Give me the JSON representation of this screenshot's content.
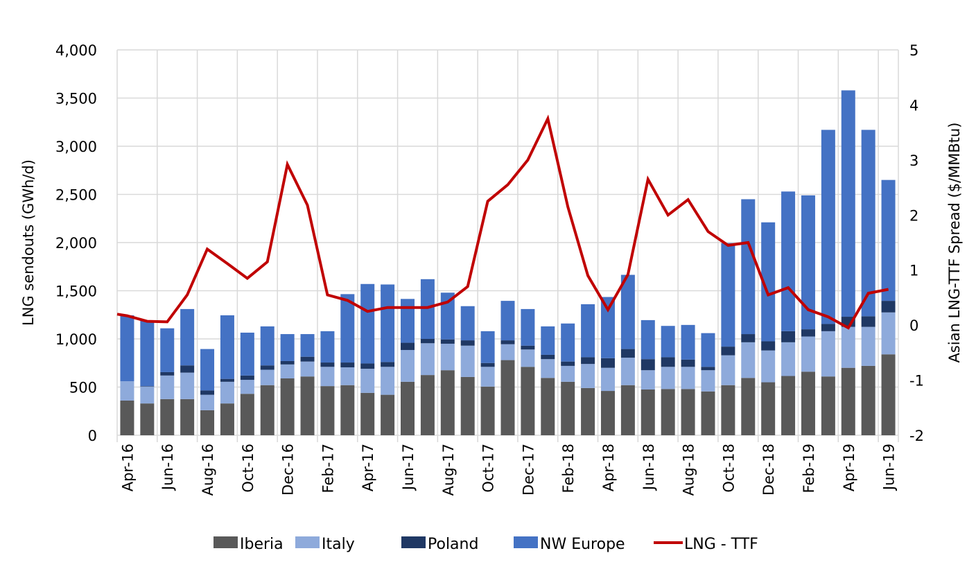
{
  "chart_data": {
    "type": "bar",
    "stacked": true,
    "title": "",
    "xlabel": "",
    "ylabel": "LNG sendouts (GWh/d)",
    "y2label": "Asian LNG-TTF Spread ($/MMBtu)",
    "ylim": [
      0,
      4000
    ],
    "y2lim": [
      -2,
      5
    ],
    "yticks": [
      "0",
      "500",
      "1,000",
      "1,500",
      "2,000",
      "2,500",
      "3,000",
      "3,500",
      "4,000"
    ],
    "y2ticks": [
      "-2",
      "-1",
      "0",
      "1",
      "2",
      "3",
      "4",
      "5"
    ],
    "grid": true,
    "legend_position": "bottom",
    "categories": [
      "Apr-16",
      "May-16",
      "Jun-16",
      "Jul-16",
      "Aug-16",
      "Sep-16",
      "Oct-16",
      "Nov-16",
      "Dec-16",
      "Jan-17",
      "Feb-17",
      "Mar-17",
      "Apr-17",
      "May-17",
      "Jun-17",
      "Jul-17",
      "Aug-17",
      "Sep-17",
      "Oct-17",
      "Nov-17",
      "Dec-17",
      "Jan-18",
      "Feb-18",
      "Mar-18",
      "Apr-18",
      "May-18",
      "Jun-18",
      "Jul-18",
      "Aug-18",
      "Sep-18",
      "Oct-18",
      "Nov-18",
      "Dec-18",
      "Jan-19",
      "Feb-19",
      "Mar-19",
      "Apr-19",
      "May-19",
      "Jun-19"
    ],
    "xtick_labels": [
      "Apr-16",
      "Jun-16",
      "Aug-16",
      "Oct-16",
      "Dec-16",
      "Feb-17",
      "Apr-17",
      "Jun-17",
      "Aug-17",
      "Oct-17",
      "Dec-17",
      "Feb-18",
      "Apr-18",
      "Jun-18",
      "Aug-18",
      "Oct-18",
      "Dec-18",
      "Feb-19",
      "Apr-19",
      "Jun-19"
    ],
    "series": [
      {
        "name": "Iberia",
        "color": "#595959",
        "axis": "left",
        "kind": "bar",
        "values": [
          360,
          330,
          375,
          375,
          260,
          330,
          430,
          520,
          590,
          610,
          510,
          520,
          440,
          420,
          555,
          625,
          675,
          605,
          505,
          780,
          710,
          595,
          555,
          490,
          460,
          520,
          475,
          480,
          480,
          455,
          520,
          595,
          550,
          615,
          660,
          610,
          700,
          720,
          840
        ]
      },
      {
        "name": "Italy",
        "color": "#8eaadb",
        "axis": "left",
        "kind": "bar",
        "values": [
          200,
          175,
          245,
          275,
          160,
          225,
          145,
          160,
          145,
          155,
          200,
          185,
          250,
          290,
          330,
          330,
          275,
          325,
          205,
          165,
          180,
          195,
          165,
          250,
          240,
          285,
          200,
          230,
          230,
          220,
          310,
          370,
          330,
          350,
          365,
          470,
          425,
          405,
          435
        ]
      },
      {
        "name": "Poland",
        "color": "#1f3864",
        "axis": "left",
        "kind": "bar",
        "values": [
          0,
          5,
          35,
          75,
          45,
          30,
          45,
          45,
          35,
          50,
          45,
          50,
          55,
          50,
          75,
          45,
          45,
          55,
          40,
          40,
          40,
          45,
          45,
          70,
          100,
          90,
          115,
          100,
          75,
          35,
          90,
          85,
          95,
          115,
          75,
          75,
          105,
          110,
          120
        ]
      },
      {
        "name": "NW Europe",
        "color": "#4472c4",
        "axis": "left",
        "kind": "bar",
        "values": [
          685,
          680,
          455,
          585,
          430,
          660,
          445,
          405,
          280,
          235,
          325,
          710,
          825,
          805,
          455,
          620,
          485,
          355,
          330,
          410,
          380,
          295,
          395,
          550,
          635,
          770,
          405,
          325,
          360,
          350,
          1075,
          1400,
          1235,
          1450,
          1390,
          2015,
          2350,
          1935,
          1255
        ]
      },
      {
        "name": "LNG - TTF",
        "color": "#c00000",
        "axis": "right",
        "kind": "line",
        "values": [
          0.17,
          0.07,
          0.06,
          0.55,
          1.38,
          1.12,
          0.85,
          1.15,
          2.92,
          2.18,
          0.55,
          0.45,
          0.25,
          0.32,
          0.32,
          0.32,
          0.42,
          0.7,
          2.25,
          2.55,
          3.0,
          3.75,
          2.15,
          0.9,
          0.28,
          0.92,
          2.65,
          2.0,
          2.28,
          1.7,
          1.45,
          1.5,
          0.55,
          0.68,
          0.28,
          0.15,
          -0.05,
          0.58,
          0.65
        ]
      }
    ]
  }
}
